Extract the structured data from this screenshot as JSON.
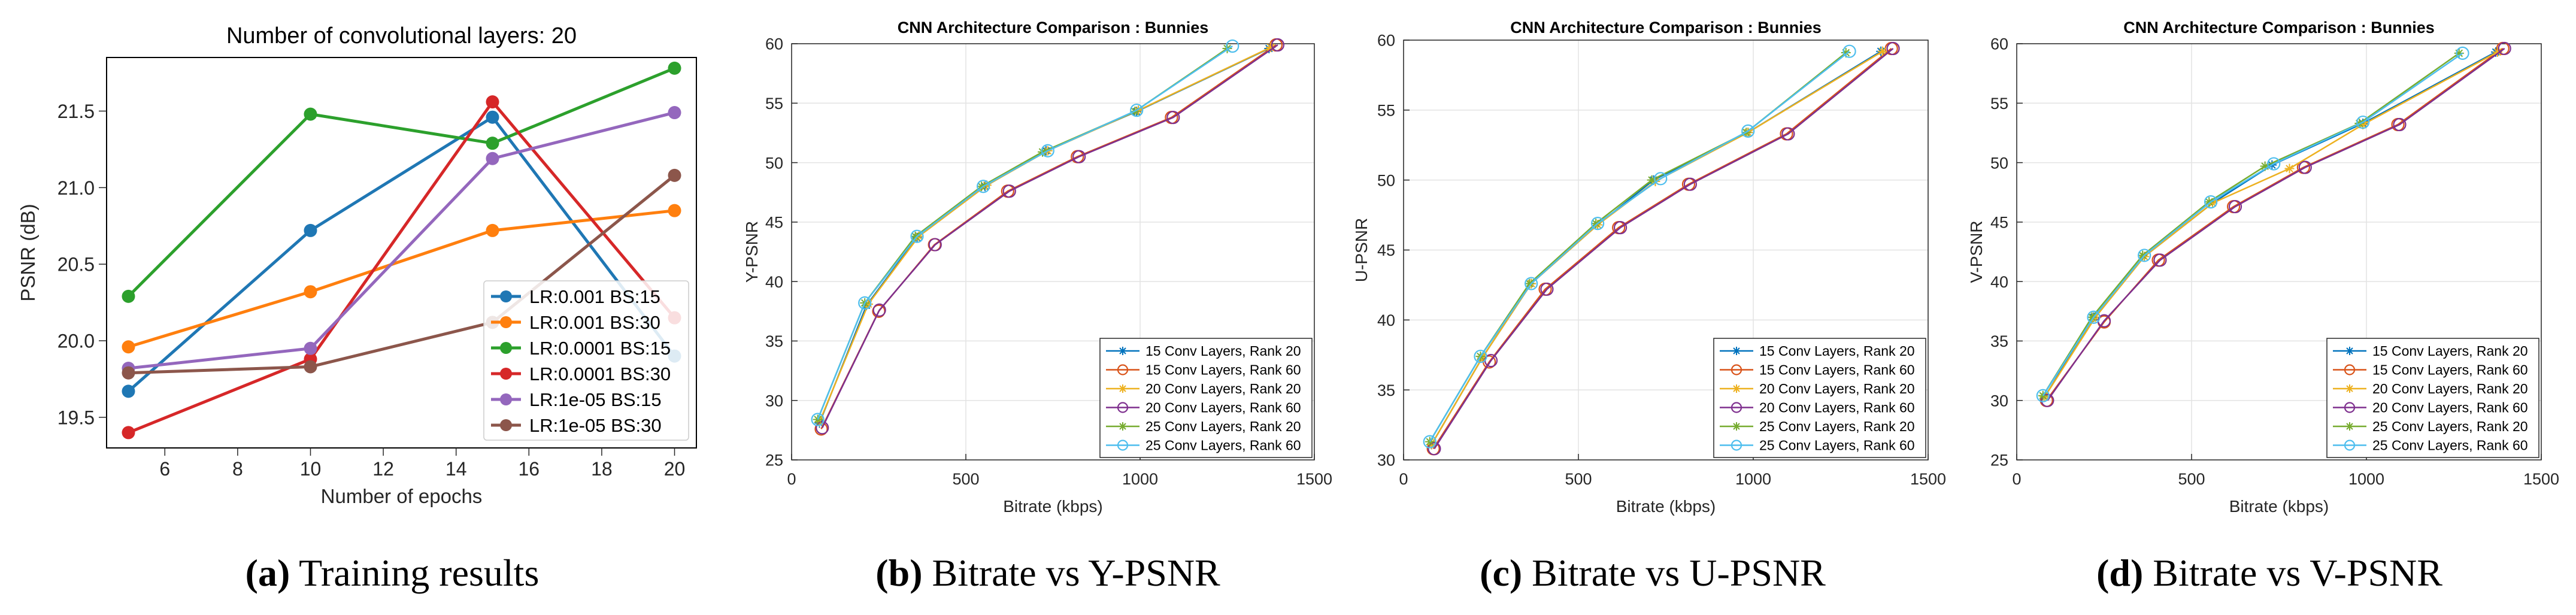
{
  "colors": {
    "series": [
      "#1f77b4",
      "#ff7f0e",
      "#2ca02c",
      "#d62728",
      "#9467bd",
      "#8c564b"
    ],
    "matlab": [
      "#0072bd",
      "#d95319",
      "#edb120",
      "#7e2f8e",
      "#77ac30",
      "#4dbeee"
    ]
  },
  "captions": [
    {
      "letter": "(a)",
      "text": " Training results"
    },
    {
      "letter": "(b)",
      "text": " Bitrate vs Y-PSNR"
    },
    {
      "letter": "(c)",
      "text": " Bitrate vs U-PSNR"
    },
    {
      "letter": "(d)",
      "text": " Bitrate vs V-PSNR"
    }
  ],
  "chart_data": [
    {
      "type": "line",
      "title": "Number of convolutional layers: 20",
      "xlabel": "Number of epochs",
      "ylabel": "PSNR (dB)",
      "x": [
        5,
        10,
        15,
        20
      ],
      "xlim": [
        4.4,
        20.6
      ],
      "ylim": [
        19.3,
        21.85
      ],
      "xticks": [
        6,
        8,
        10,
        12,
        14,
        16,
        18,
        20
      ],
      "yticks": [
        19.5,
        20.0,
        20.5,
        21.0,
        21.5
      ],
      "ytick_labels": [
        "19.5",
        "20.0",
        "20.5",
        "21.0",
        "21.5"
      ],
      "grid": false,
      "legend_position": "lower-right",
      "series": [
        {
          "name": "LR:0.001 BS:15",
          "values": [
            19.67,
            20.72,
            21.46,
            19.9
          ]
        },
        {
          "name": "LR:0.001 BS:30",
          "values": [
            19.96,
            20.32,
            20.72,
            20.85
          ]
        },
        {
          "name": "LR:0.0001 BS:15",
          "values": [
            20.29,
            21.48,
            21.29,
            21.78
          ]
        },
        {
          "name": "LR:0.0001 BS:30",
          "values": [
            19.4,
            19.88,
            21.56,
            20.15
          ]
        },
        {
          "name": "LR:1e-05 BS:15",
          "values": [
            19.82,
            19.95,
            21.19,
            21.49
          ]
        },
        {
          "name": "LR:1e-05 BS:30",
          "values": [
            19.79,
            19.83,
            20.12,
            21.08
          ]
        }
      ]
    },
    {
      "type": "line",
      "title": "CNN Architecture Comparison : Bunnies",
      "xlabel": "Bitrate (kbps)",
      "ylabel": "Y-PSNR",
      "xlim": [
        0,
        1500
      ],
      "ylim": [
        25,
        60
      ],
      "xticks": [
        0,
        500,
        1000,
        1500
      ],
      "yticks": [
        25,
        30,
        35,
        40,
        45,
        50,
        55,
        60
      ],
      "grid": true,
      "legend_position": "lower-right",
      "series": [
        {
          "name": "15 Conv Layers, Rank 20",
          "marker": "asterisk",
          "x": [
            80,
            215,
            360,
            555,
            730,
            990,
            1370
          ],
          "y": [
            28.1,
            38.0,
            43.7,
            48.0,
            51.0,
            54.3,
            59.6
          ]
        },
        {
          "name": "15 Conv Layers, Rank 60",
          "marker": "circle",
          "x": [
            85,
            250,
            410,
            620,
            820,
            1090,
            1390
          ],
          "y": [
            27.6,
            37.5,
            43.1,
            47.6,
            50.5,
            53.8,
            59.9
          ]
        },
        {
          "name": "20 Conv Layers, Rank 20",
          "marker": "asterisk",
          "x": [
            80,
            220,
            365,
            560,
            735,
            995,
            1375
          ],
          "y": [
            28.2,
            38.1,
            43.8,
            48.1,
            51.0,
            54.4,
            59.7
          ]
        },
        {
          "name": "20 Conv Layers, Rank 60",
          "marker": "circle",
          "x": [
            88,
            252,
            412,
            625,
            825,
            1095,
            1395
          ],
          "y": [
            27.7,
            37.6,
            43.1,
            47.6,
            50.5,
            53.8,
            59.9
          ]
        },
        {
          "name": "25 Conv Layers, Rank 20",
          "marker": "asterisk",
          "x": [
            75,
            210,
            355,
            545,
            720,
            985,
            1250
          ],
          "y": [
            28.4,
            38.2,
            43.8,
            48.0,
            50.9,
            54.3,
            59.6
          ]
        },
        {
          "name": "25 Conv Layers, Rank 60",
          "marker": "circle",
          "x": [
            75,
            210,
            360,
            550,
            735,
            990,
            1265
          ],
          "y": [
            28.4,
            38.2,
            43.8,
            48.0,
            51.0,
            54.4,
            59.8
          ]
        }
      ]
    },
    {
      "type": "line",
      "title": "CNN Architecture Comparison : Bunnies",
      "xlabel": "Bitrate (kbps)",
      "ylabel": "U-PSNR",
      "xlim": [
        0,
        1500
      ],
      "ylim": [
        30,
        60
      ],
      "xticks": [
        0,
        500,
        1000,
        1500
      ],
      "yticks": [
        30,
        35,
        40,
        45,
        50,
        55,
        60
      ],
      "grid": true,
      "legend_position": "lower-right",
      "series": [
        {
          "name": "15 Conv Layers, Rank 20",
          "marker": "asterisk",
          "x": [
            80,
            225,
            365,
            555,
            715,
            985,
            1365
          ],
          "y": [
            31.1,
            37.3,
            42.6,
            46.8,
            50.0,
            53.4,
            59.2
          ]
        },
        {
          "name": "15 Conv Layers, Rank 60",
          "marker": "circle",
          "x": [
            85,
            245,
            405,
            615,
            815,
            1095,
            1395
          ],
          "y": [
            30.8,
            37.0,
            42.2,
            46.6,
            49.7,
            53.3,
            59.4
          ]
        },
        {
          "name": "20 Conv Layers, Rank 20",
          "marker": "asterisk",
          "x": [
            80,
            225,
            365,
            555,
            720,
            985,
            1370
          ],
          "y": [
            31.1,
            37.3,
            42.6,
            46.8,
            49.9,
            53.4,
            59.2
          ]
        },
        {
          "name": "20 Conv Layers, Rank 60",
          "marker": "circle",
          "x": [
            88,
            250,
            410,
            620,
            820,
            1100,
            1400
          ],
          "y": [
            30.8,
            37.1,
            42.2,
            46.6,
            49.7,
            53.3,
            59.4
          ]
        },
        {
          "name": "25 Conv Layers, Rank 20",
          "marker": "asterisk",
          "x": [
            75,
            220,
            360,
            550,
            710,
            980,
            1265
          ],
          "y": [
            31.3,
            37.4,
            42.6,
            46.9,
            50.0,
            53.4,
            59.1
          ]
        },
        {
          "name": "25 Conv Layers, Rank 60",
          "marker": "circle",
          "x": [
            75,
            220,
            365,
            555,
            735,
            985,
            1275
          ],
          "y": [
            31.3,
            37.4,
            42.6,
            46.9,
            50.1,
            53.5,
            59.2
          ]
        }
      ]
    },
    {
      "type": "line",
      "title": "CNN Architecture Comparison : Bunnies",
      "xlabel": "Bitrate (kbps)",
      "ylabel": "V-PSNR",
      "xlim": [
        0,
        1500
      ],
      "ylim": [
        25,
        60
      ],
      "xticks": [
        0,
        500,
        1000,
        1500
      ],
      "yticks": [
        25,
        30,
        35,
        40,
        45,
        50,
        55,
        60
      ],
      "grid": true,
      "legend_position": "lower-right",
      "series": [
        {
          "name": "15 Conv Layers, Rank 20",
          "marker": "asterisk",
          "x": [
            80,
            220,
            365,
            560,
            730,
            990,
            1370
          ],
          "y": [
            30.3,
            37.0,
            42.1,
            46.6,
            49.8,
            53.3,
            59.3
          ]
        },
        {
          "name": "15 Conv Layers, Rank 60",
          "marker": "circle",
          "x": [
            85,
            250,
            405,
            620,
            820,
            1090,
            1390
          ],
          "y": [
            30.0,
            36.6,
            41.8,
            46.3,
            49.6,
            53.2,
            59.6
          ]
        },
        {
          "name": "20 Conv Layers, Rank 20",
          "marker": "asterisk",
          "x": [
            80,
            225,
            365,
            560,
            780,
            990,
            1375
          ],
          "y": [
            30.3,
            37.0,
            42.1,
            46.6,
            49.5,
            53.2,
            59.3
          ]
        },
        {
          "name": "20 Conv Layers, Rank 60",
          "marker": "circle",
          "x": [
            88,
            250,
            410,
            625,
            825,
            1095,
            1395
          ],
          "y": [
            30.0,
            36.7,
            41.8,
            46.3,
            49.6,
            53.2,
            59.6
          ]
        },
        {
          "name": "25 Conv Layers, Rank 20",
          "marker": "asterisk",
          "x": [
            75,
            215,
            360,
            550,
            710,
            980,
            1265
          ],
          "y": [
            30.4,
            37.0,
            42.2,
            46.7,
            49.7,
            53.3,
            59.2
          ]
        },
        {
          "name": "25 Conv Layers, Rank 60",
          "marker": "circle",
          "x": [
            75,
            220,
            365,
            555,
            735,
            990,
            1275
          ],
          "y": [
            30.4,
            37.0,
            42.2,
            46.7,
            49.9,
            53.4,
            59.2
          ]
        }
      ]
    }
  ]
}
